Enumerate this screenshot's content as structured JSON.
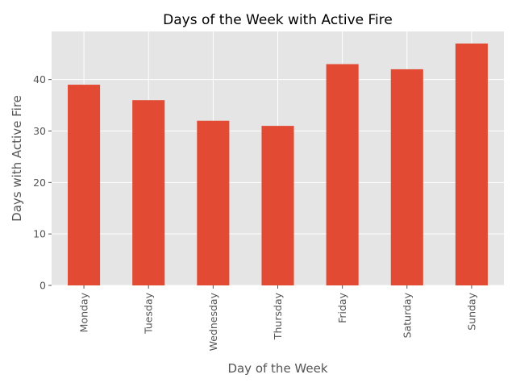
{
  "chart_data": {
    "type": "bar",
    "title": "Days of the Week with Active Fire",
    "xlabel": "Day of the Week",
    "ylabel": "Days with Active Fire",
    "categories": [
      "Monday",
      "Tuesday",
      "Wednesday",
      "Thursday",
      "Friday",
      "Saturday",
      "Sunday"
    ],
    "values": [
      39,
      36,
      32,
      31,
      43,
      42,
      47
    ],
    "ylim": [
      0,
      49.35
    ],
    "yticks": [
      "0",
      "10",
      "20",
      "30",
      "40"
    ],
    "grid": true,
    "colors": {
      "bar": "#E24A33",
      "plot_background": "#E5E5E5",
      "grid": "#FFFFFF"
    }
  }
}
